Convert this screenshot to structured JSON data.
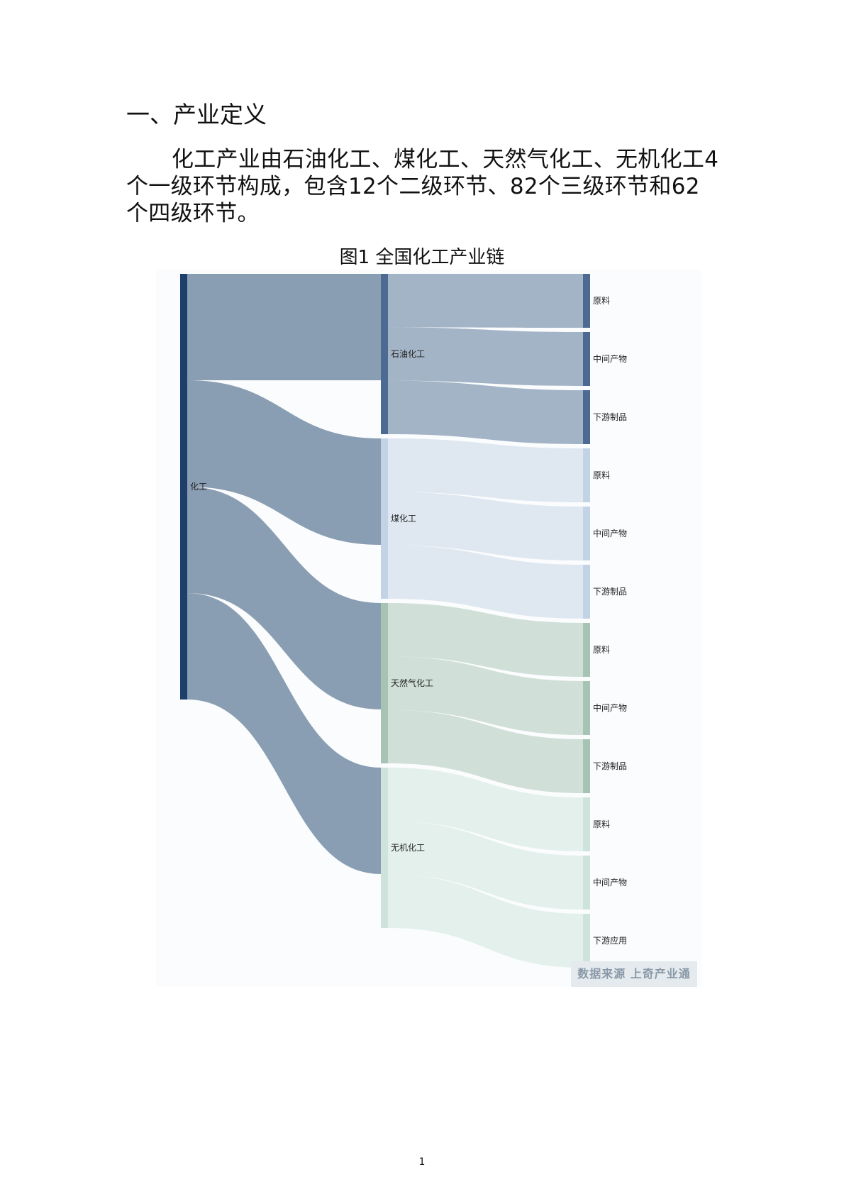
{
  "section": {
    "heading": "一、产业定义"
  },
  "paragraph": "化工产业由石油化工、煤化工、天然气化工、无机化工4个一级环节构成，包含12个二级环节、82个三级环节和62个四级环节。",
  "figure": {
    "title": "图1 全国化工产业链",
    "source": "数据来源 上奇产业通"
  },
  "chart_data": {
    "type": "sankey",
    "root": {
      "name": "化工",
      "color": "#1f3f6b"
    },
    "branches": [
      {
        "name": "石油化工",
        "color": "#4d6b92",
        "children": [
          "原料",
          "中间产物",
          "下游制品"
        ]
      },
      {
        "name": "煤化工",
        "color": "#c3d3e6",
        "children": [
          "原料",
          "中间产物",
          "下游制品"
        ]
      },
      {
        "name": "天然气化工",
        "color": "#a6c3b3",
        "children": [
          "原料",
          "中间产物",
          "下游制品"
        ]
      },
      {
        "name": "无机化工",
        "color": "#cde3dc",
        "children": [
          "原料",
          "中间产物",
          "下游应用"
        ]
      }
    ]
  },
  "page_number": "1"
}
